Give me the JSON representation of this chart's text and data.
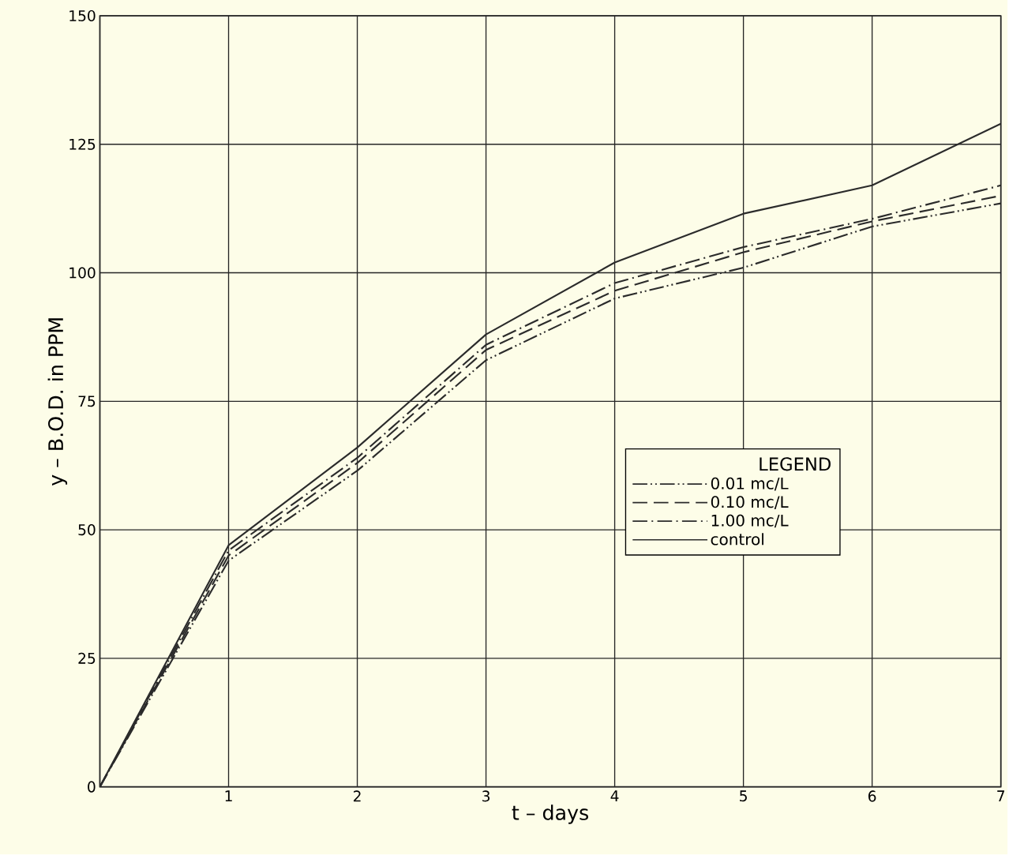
{
  "chart_data": {
    "type": "line",
    "x": [
      0,
      1,
      2,
      3,
      4,
      5,
      6,
      7
    ],
    "series": [
      {
        "name": "0.01 mc/L",
        "color": "#2b2b2b",
        "line_style": "dashdotdotted",
        "values": [
          0,
          44,
          61.5,
          83,
          95,
          101,
          109,
          113.5
        ]
      },
      {
        "name": "0.10 mc/L",
        "color": "#2b2b2b",
        "line_style": "dashed",
        "values": [
          0,
          45,
          63,
          85,
          96.5,
          104,
          110,
          115
        ]
      },
      {
        "name": "1.00 mc/L",
        "color": "#2b2b2b",
        "line_style": "dashdotted",
        "values": [
          0,
          46,
          64,
          86,
          98,
          105,
          110.5,
          117
        ]
      },
      {
        "name": "control",
        "color": "#2b2b2b",
        "line_style": "solid",
        "values": [
          0,
          47,
          66,
          88,
          102,
          111.5,
          117,
          129
        ]
      }
    ],
    "xlabel": "t – days",
    "ylabel": "y – B.O.D. in PPM",
    "legend_title": "LEGEND",
    "xlim": [
      0,
      7
    ],
    "ylim": [
      0,
      150
    ],
    "xticks": [
      {
        "value": 0,
        "label": null
      },
      1,
      2,
      3,
      4,
      5,
      6,
      7
    ],
    "yticks": [
      0,
      25,
      50,
      75,
      100,
      125,
      150
    ],
    "grid": true,
    "legend": "right",
    "marker": "none"
  }
}
